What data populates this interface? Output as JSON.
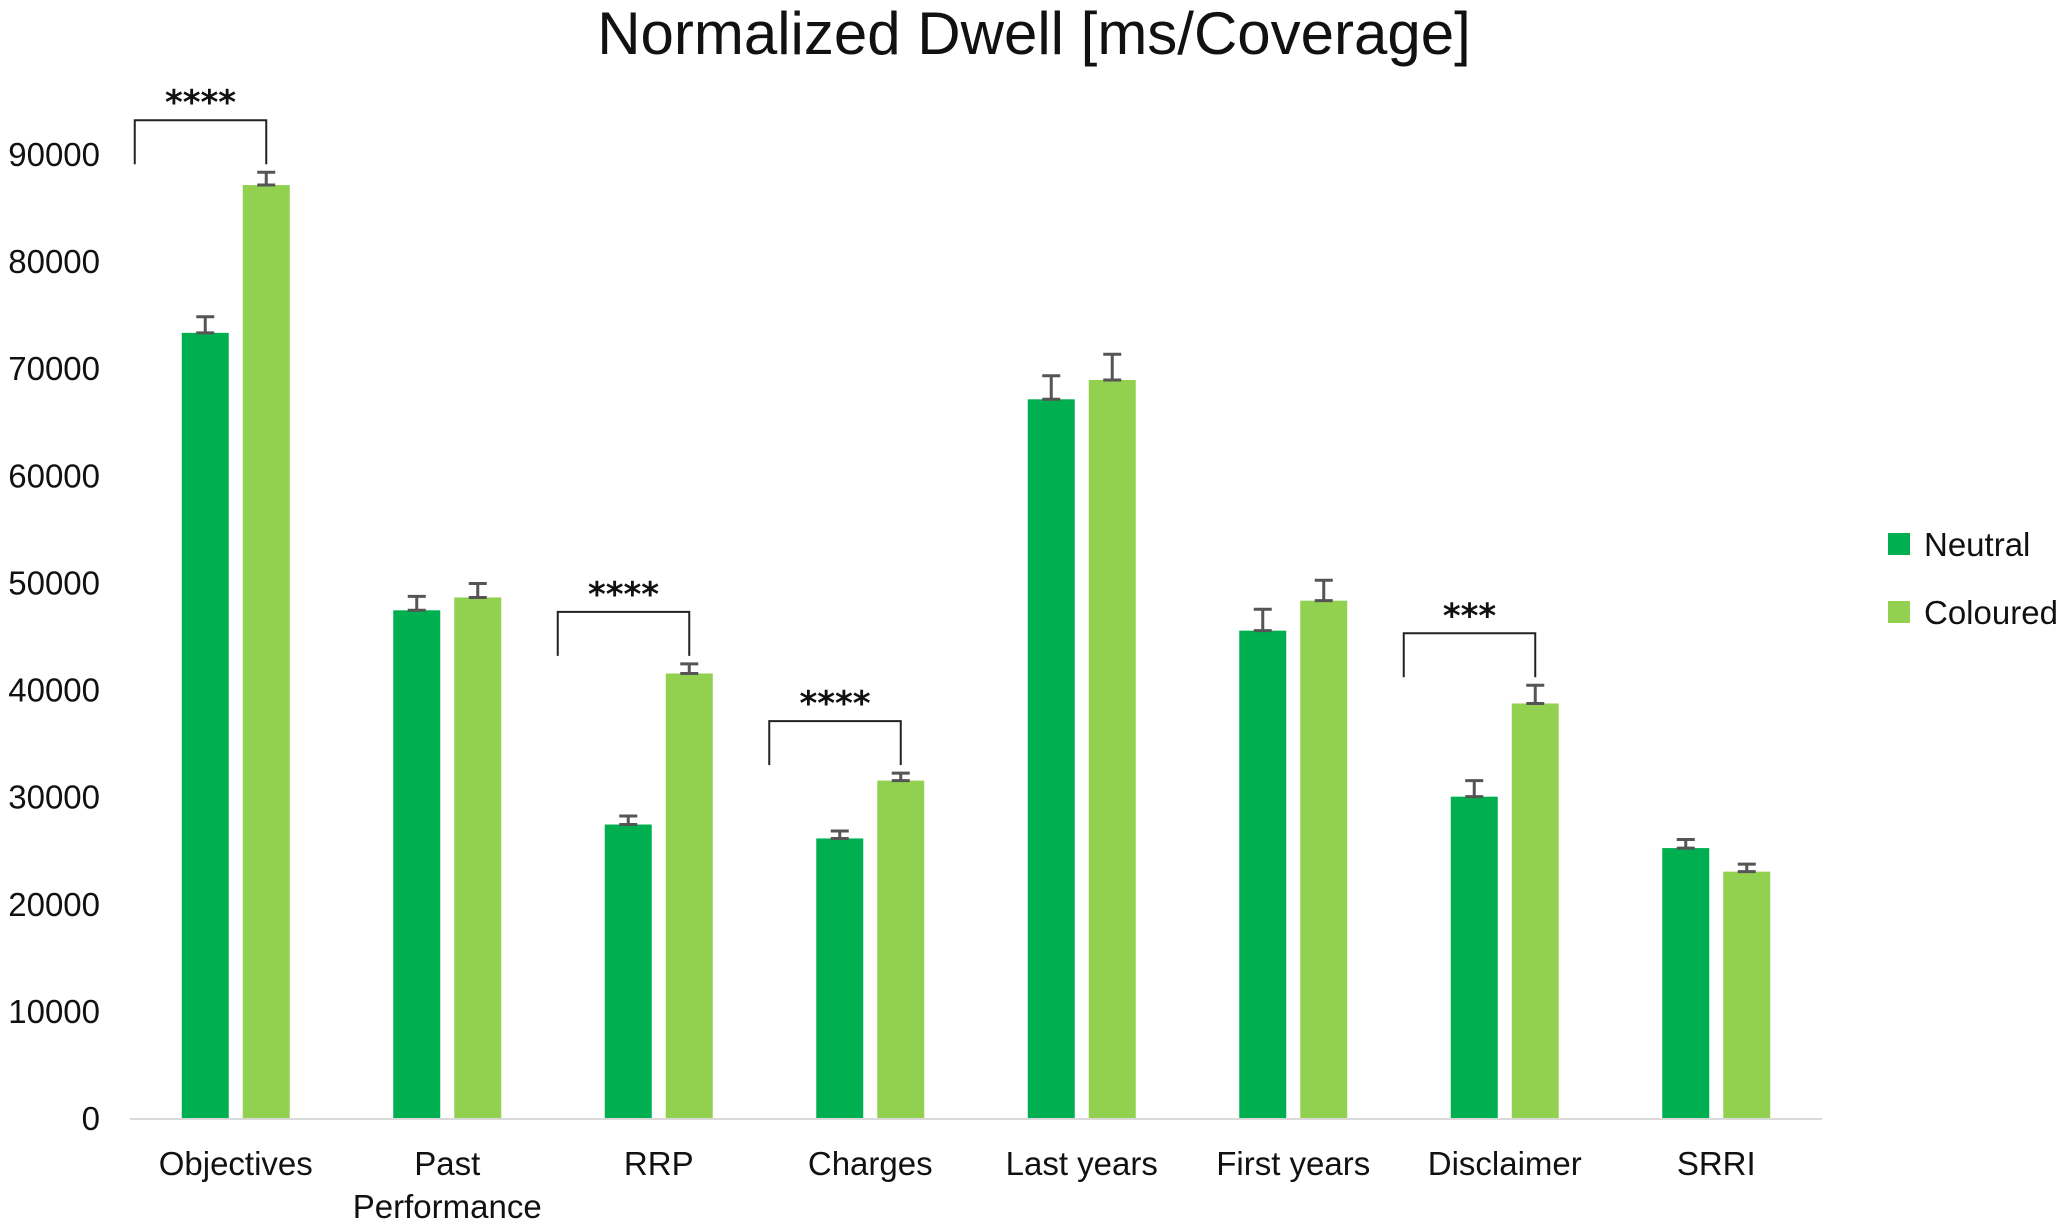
{
  "chart_data": {
    "type": "bar",
    "title": "Normalized Dwell [ms/Coverage]",
    "xlabel": "",
    "ylabel": "",
    "ylim": [
      0,
      90000
    ],
    "yticks": [
      0,
      10000,
      20000,
      30000,
      40000,
      50000,
      60000,
      70000,
      80000,
      90000
    ],
    "yticks_labels": [
      "0",
      "10000",
      "20000",
      "30000",
      "40000",
      "50000",
      "60000",
      "70000",
      "80000",
      "90000"
    ],
    "grid": false,
    "legend_position": "right",
    "categories": [
      "Objectives",
      "Past Performance",
      "RRP",
      "Charges",
      "Last years",
      "First years",
      "Disclaimer",
      "SRRI"
    ],
    "category_lines": [
      [
        "Objectives"
      ],
      [
        "Past",
        "Performance"
      ],
      [
        "RRP"
      ],
      [
        "Charges"
      ],
      [
        "Last years"
      ],
      [
        "First years"
      ],
      [
        "Disclaimer"
      ],
      [
        "SRRI"
      ]
    ],
    "series": [
      {
        "name": "Neutral",
        "color": "#00b050",
        "values": [
          73300,
          47400,
          27400,
          26100,
          67100,
          45500,
          30000,
          25200
        ],
        "errors": [
          1500,
          1300,
          800,
          700,
          2200,
          2000,
          1500,
          800
        ]
      },
      {
        "name": "Coloured",
        "color": "#92d050",
        "values": [
          87100,
          48600,
          41500,
          31500,
          68900,
          48300,
          38700,
          23000
        ],
        "errors": [
          1200,
          1300,
          900,
          700,
          2400,
          1900,
          1700,
          700
        ]
      }
    ],
    "annotations": [
      {
        "category": "Objectives",
        "label": "****"
      },
      {
        "category": "RRP",
        "label": "****"
      },
      {
        "category": "Charges",
        "label": "****"
      },
      {
        "category": "Disclaimer",
        "label": "***"
      }
    ]
  }
}
